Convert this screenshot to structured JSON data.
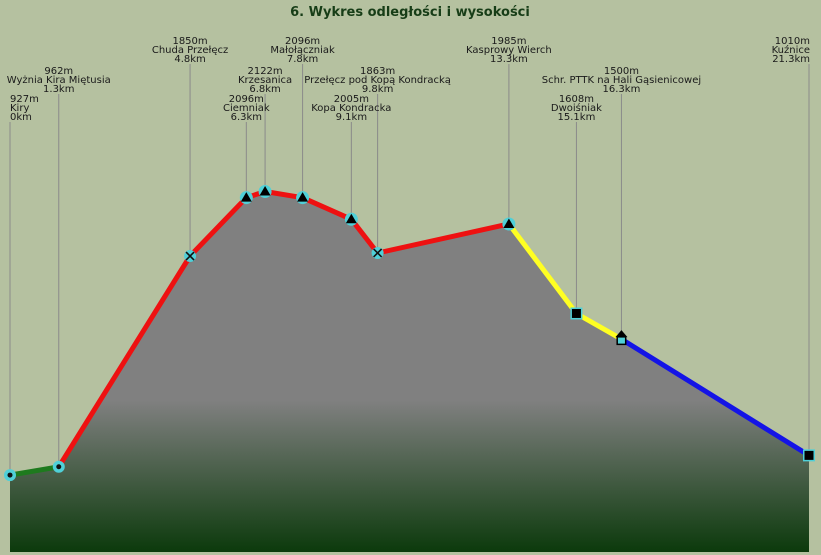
{
  "chart_data": {
    "type": "area",
    "title": "6. Wykres odległości i wysokości",
    "xlabel": "",
    "ylabel": "",
    "xlim": [
      0,
      21.3
    ],
    "ylim": [
      500,
      2350
    ],
    "colors": {
      "background": "#b5c1a0",
      "area_top": "#808080",
      "area_bottom": "#0c3a0c",
      "marker_fill": "#4fd0d8"
    },
    "points": [
      {
        "km": 0,
        "elev": 927,
        "name": "Kiry",
        "elev_label": "927m",
        "km_label": "0km",
        "marker": "circle"
      },
      {
        "km": 1.3,
        "elev": 962,
        "name": "Wyżnia Kira Miętusia",
        "elev_label": "962m",
        "km_label": "1.3km",
        "marker": "circle"
      },
      {
        "km": 4.8,
        "elev": 1850,
        "name": "Chuda Przełęcz",
        "elev_label": "1850m",
        "km_label": "4.8km",
        "marker": "cross"
      },
      {
        "km": 6.3,
        "elev": 2096,
        "name": "Ciemniak",
        "elev_label": "2096m",
        "km_label": "6.3km",
        "marker": "triangle"
      },
      {
        "km": 6.8,
        "elev": 2122,
        "name": "Krzesanica",
        "elev_label": "2122m",
        "km_label": "6.8km",
        "marker": "triangle"
      },
      {
        "km": 7.8,
        "elev": 2096,
        "name": "Małołączniak",
        "elev_label": "2096m",
        "km_label": "7.8km",
        "marker": "triangle"
      },
      {
        "km": 9.1,
        "elev": 2005,
        "name": "Kopa Kondracka",
        "elev_label": "2005m",
        "km_label": "9.1km",
        "marker": "triangle"
      },
      {
        "km": 9.8,
        "elev": 1863,
        "name": "Przełęcz pod Kopą Kondracką",
        "elev_label": "1863m",
        "km_label": "9.8km",
        "marker": "cross"
      },
      {
        "km": 13.3,
        "elev": 1985,
        "name": "Kasprowy Wierch",
        "elev_label": "1985m",
        "km_label": "13.3km",
        "marker": "triangle"
      },
      {
        "km": 15.1,
        "elev": 1608,
        "name": "Dwoiśniak",
        "elev_label": "1608m",
        "km_label": "15.1km",
        "marker": "square"
      },
      {
        "km": 16.3,
        "elev": 1500,
        "name": "Schr. PTTK na Hali Gąsienicowej",
        "elev_label": "1500m",
        "km_label": "16.3km",
        "marker": "hut"
      },
      {
        "km": 21.3,
        "elev": 1010,
        "name": "Kuźnice",
        "elev_label": "1010m",
        "km_label": "21.3km",
        "marker": "square"
      }
    ],
    "segments": [
      {
        "from": 0,
        "to": 1,
        "color": "#1e7a1e"
      },
      {
        "from": 1,
        "to": 7,
        "color": "#ee1111"
      },
      {
        "from": 7,
        "to": 8,
        "color": "#ee1111"
      },
      {
        "from": 8,
        "to": 10,
        "color": "#ffff22"
      },
      {
        "from": 10,
        "to": 11,
        "color": "#1414e6"
      }
    ]
  }
}
